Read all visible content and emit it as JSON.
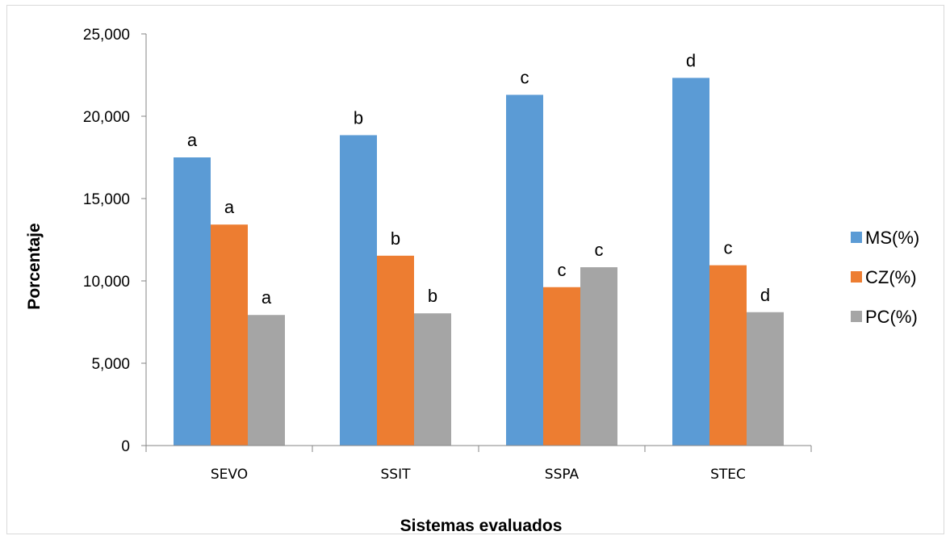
{
  "chart_data": {
    "type": "bar",
    "title": "",
    "xlabel": "Sistemas evaluados",
    "ylabel": "Porcentaje",
    "categories": [
      "SEVO",
      "SSIT",
      "SSPA",
      "STEC"
    ],
    "ylim": [
      0,
      25000
    ],
    "yticks": [
      0,
      5000,
      10000,
      15000,
      20000,
      25000
    ],
    "ytick_labels": [
      "0",
      "5,000",
      "10,000",
      "15,000",
      "20,000",
      "25,000"
    ],
    "grid": false,
    "legend_position": "right",
    "series": [
      {
        "name": "MS(%)",
        "color": "#5b9bd5",
        "values": [
          17500,
          18850,
          21300,
          22330
        ],
        "labels": [
          "a",
          "b",
          "c",
          "d"
        ]
      },
      {
        "name": "CZ(%)",
        "color": "#ed7d31",
        "values": [
          13420,
          11530,
          9620,
          10950
        ],
        "labels": [
          "a",
          "b",
          "c",
          "c"
        ]
      },
      {
        "name": "PC(%)",
        "color": "#a5a5a5",
        "values": [
          7930,
          8030,
          10830,
          8100
        ],
        "labels": [
          "a",
          "b",
          "c",
          "d"
        ]
      }
    ]
  }
}
